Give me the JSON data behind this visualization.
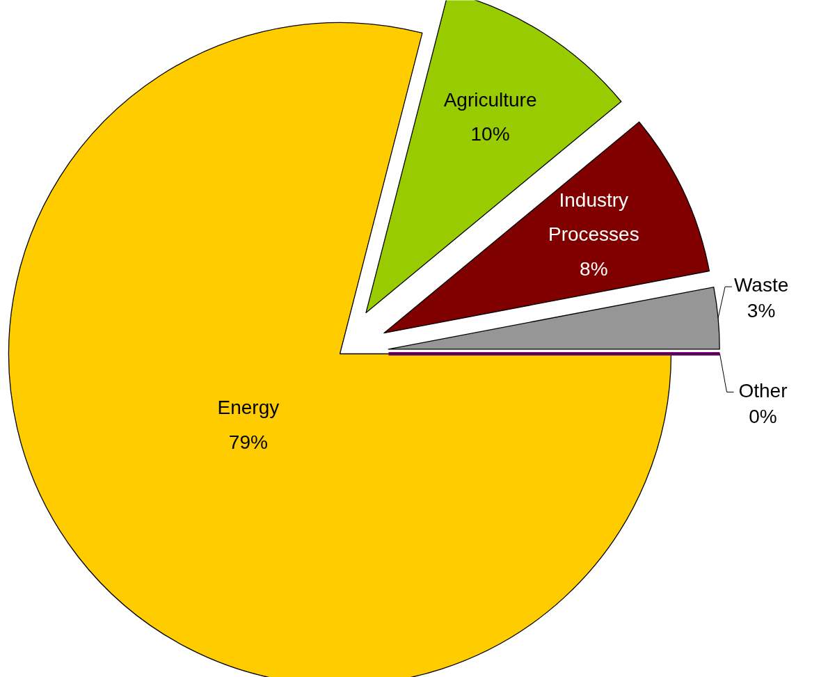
{
  "chart_data": {
    "type": "pie",
    "categories": [
      "Energy",
      "Agriculture",
      "Industry Processes",
      "Waste",
      "Other"
    ],
    "values": [
      79,
      10,
      8,
      3,
      0
    ],
    "colors": [
      "#ffcc00",
      "#99cc00",
      "#800000",
      "#969696",
      "#800080"
    ],
    "value_labels": [
      "79%",
      "10%",
      "8%",
      "3%",
      "0%"
    ]
  }
}
